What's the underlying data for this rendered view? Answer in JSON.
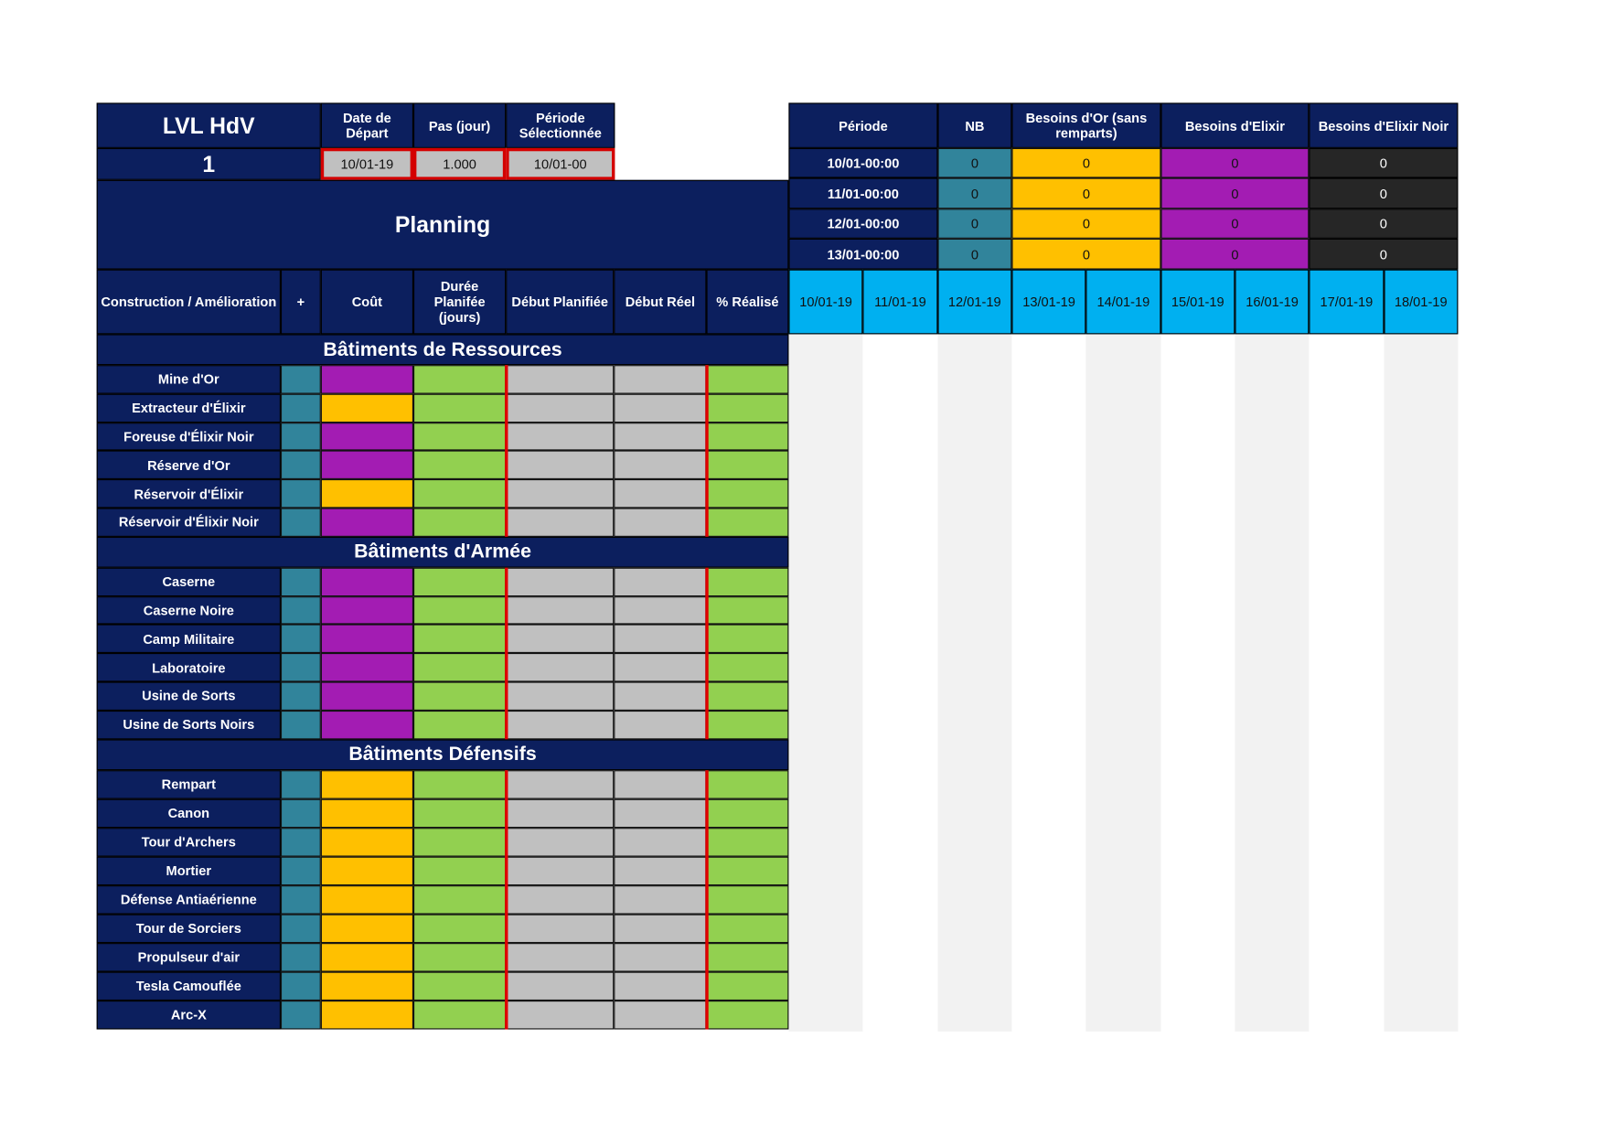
{
  "top": {
    "lvl_label": "LVL HdV",
    "lvl_value": "1",
    "date_depart_label": "Date de Départ",
    "date_depart_value": "10/01-19",
    "pas_label": "Pas (jour)",
    "pas_value": "1.000",
    "periode_sel_label": "Période Sélectionnée",
    "periode_sel_value": "10/01-00"
  },
  "planning_title": "Planning",
  "columns": {
    "name": "Construction / Amélioration",
    "plus": "+",
    "cout": "Coût",
    "duree": "Durée Planifée (jours)",
    "debut_planifiee": "Début Planifiée",
    "debut_reel": "Début Réel",
    "realise": "% Réalisé"
  },
  "colors": {
    "navy": "#0c1f5e",
    "gold": "#ffc000",
    "elixir": "#a31cb3",
    "dark_elixir": "#262626",
    "teal": "#31849b",
    "green": "#92d050",
    "input_grey": "#c0c0c0",
    "date_header": "#00b0f0",
    "input_border": "#d40000"
  },
  "sections": [
    {
      "title": "Bâtiments de Ressources",
      "items": [
        {
          "name": "Mine d'Or",
          "cost": "elixir"
        },
        {
          "name": "Extracteur d'Élixir",
          "cost": "gold"
        },
        {
          "name": "Foreuse d'Élixir Noir",
          "cost": "elixir"
        },
        {
          "name": "Réserve d'Or",
          "cost": "elixir"
        },
        {
          "name": "Réservoir d'Élixir",
          "cost": "gold"
        },
        {
          "name": "Réservoir d'Élixir Noir",
          "cost": "elixir"
        }
      ]
    },
    {
      "title": "Bâtiments d'Armée",
      "items": [
        {
          "name": "Caserne",
          "cost": "elixir"
        },
        {
          "name": "Caserne Noire",
          "cost": "elixir"
        },
        {
          "name": "Camp Militaire",
          "cost": "elixir"
        },
        {
          "name": "Laboratoire",
          "cost": "elixir"
        },
        {
          "name": "Usine de Sorts",
          "cost": "elixir"
        },
        {
          "name": "Usine de Sorts Noirs",
          "cost": "elixir"
        }
      ]
    },
    {
      "title": "Bâtiments Défensifs",
      "items": [
        {
          "name": "Rempart",
          "cost": "gold"
        },
        {
          "name": "Canon",
          "cost": "gold"
        },
        {
          "name": "Tour d'Archers",
          "cost": "gold"
        },
        {
          "name": "Mortier",
          "cost": "gold"
        },
        {
          "name": "Défense Antiaérienne",
          "cost": "gold"
        },
        {
          "name": "Tour de Sorciers",
          "cost": "gold"
        },
        {
          "name": "Propulseur d'air",
          "cost": "gold"
        },
        {
          "name": "Tesla Camouflée",
          "cost": "gold"
        },
        {
          "name": "Arc-X",
          "cost": "gold"
        }
      ]
    }
  ],
  "summary": {
    "headers": [
      "Période",
      "NB",
      "Besoins d'Or (sans remparts)",
      "Besoins d'Elixir",
      "Besoins d'Elixir Noir"
    ],
    "rows": [
      [
        "10/01-00:00",
        "0",
        "0",
        "0",
        "0"
      ],
      [
        "11/01-00:00",
        "0",
        "0",
        "0",
        "0"
      ],
      [
        "12/01-00:00",
        "0",
        "0",
        "0",
        "0"
      ],
      [
        "13/01-00:00",
        "0",
        "0",
        "0",
        "0"
      ]
    ]
  },
  "dates": [
    "10/01-19",
    "11/01-19",
    "12/01-19",
    "13/01-19",
    "14/01-19",
    "15/01-19",
    "16/01-19",
    "17/01-19",
    "18/01-19"
  ]
}
